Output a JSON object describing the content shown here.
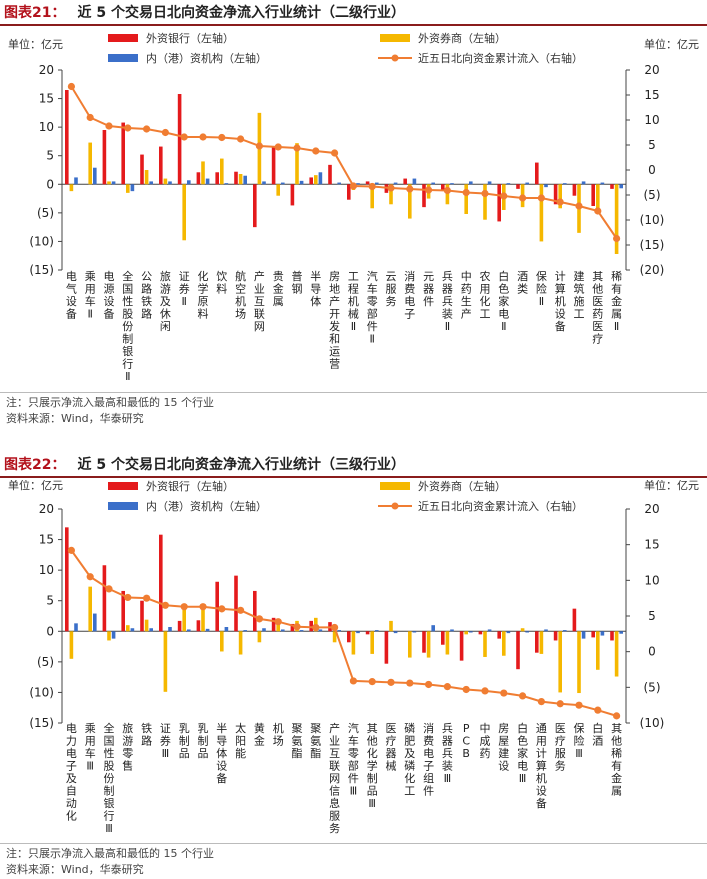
{
  "colors": {
    "foreign_bank": "#e41a1c",
    "foreign_broker": "#f5b800",
    "hk_inst": "#3b6fc9",
    "cumulative": "#f07d32",
    "title_number": "#b3121c"
  },
  "charts": [
    {
      "title_number": "图表21：",
      "title_text": "近 5 个交易日北向资金净流入行业统计（二级行业）",
      "note": "注：只展示净流入最高和最低的 15 个行业",
      "source": "资料来源：Wind，华泰研究"
    },
    {
      "title_number": "图表22：",
      "title_text": "近 5 个交易日北向资金净流入行业统计（三级行业）",
      "note": "注：只展示净流入最高和最低的 15 个行业",
      "source": "资料来源：Wind，华泰研究"
    }
  ],
  "chart_data": [
    {
      "type": "bar",
      "title": "近 5 个交易日北向资金净流入行业统计（二级行业）",
      "left_unit": "单位：亿元",
      "right_unit": "单位：亿元",
      "left_ylim": [
        -15,
        20
      ],
      "left_ticks": [
        "20",
        "15",
        "10",
        "5",
        "0",
        "(5)",
        "(10)",
        "(15)"
      ],
      "right_ylim": [
        -20,
        20
      ],
      "right_ticks": [
        "20",
        "15",
        "10",
        "5",
        "0",
        "(5)",
        "(10)",
        "(15)",
        "(20)"
      ],
      "legend": [
        "外资银行（左轴）",
        "外资券商（左轴）",
        "内（港）资机构（左轴）",
        "近五日北向资金累计流入（右轴）"
      ],
      "categories": [
        "电气设备",
        "乘用车Ⅱ",
        "电源设备",
        "全国性股份制银行Ⅱ",
        "公路铁路",
        "旅游及休闲",
        "证券Ⅱ",
        "化学原料",
        "饮料",
        "航空机场",
        "产业互联网",
        "贵金属",
        "普钢",
        "半导体",
        "房地产开发和运营",
        "工程机械Ⅱ",
        "汽车零部件Ⅱ",
        "云服务",
        "消费电子",
        "元器件",
        "兵器兵装Ⅱ",
        "中药生产",
        "农用化工",
        "白色家电Ⅱ",
        "酒类",
        "保险Ⅱ",
        "计算机设备",
        "建筑施工",
        "其他医药医疗",
        "稀有金属Ⅱ"
      ],
      "series": [
        {
          "name": "外资银行（左轴）",
          "values": [
            16.5,
            0,
            9.5,
            10.8,
            5.2,
            6.6,
            15.8,
            2.1,
            2.1,
            2.2,
            -7.5,
            6.7,
            -3.7,
            1.2,
            3.4,
            -2.7,
            0.5,
            -1.5,
            1.0,
            -4.0,
            -1.0,
            0,
            0,
            -6.5,
            -0.8,
            3.8,
            -3.5,
            -2.0,
            -3.8,
            -0.8
          ]
        },
        {
          "name": "外资券商（左轴）",
          "values": [
            -1.2,
            7.3,
            0.5,
            -1.5,
            2.5,
            1.0,
            -9.8,
            4.0,
            4.5,
            1.8,
            12.5,
            -2.0,
            7.2,
            1.6,
            0,
            -1.0,
            -4.2,
            -3.5,
            -6.0,
            -2.5,
            -3.5,
            -5.2,
            -6.2,
            -4.5,
            -4.0,
            -10.0,
            -4.2,
            -8.5,
            -4.8,
            -12.2
          ]
        },
        {
          "name": "内（港）资机构（左轴）",
          "values": [
            1.2,
            2.9,
            0.5,
            -1.2,
            0.5,
            0.5,
            0.7,
            1.0,
            0.2,
            1.5,
            0.5,
            0.3,
            0.6,
            2.1,
            0.3,
            0.2,
            0.3,
            0.3,
            1.0,
            0.3,
            0.2,
            0.5,
            0.5,
            0.2,
            0.3,
            -0.5,
            0.2,
            0.5,
            0.3,
            -0.7
          ]
        },
        {
          "name": "近五日北向资金累计流入（右轴）",
          "values": [
            16.7,
            10.5,
            8.8,
            8.4,
            8.2,
            7.5,
            6.6,
            6.6,
            6.5,
            6.2,
            4.8,
            4.6,
            4.4,
            3.8,
            3.4,
            -3.2,
            -3.3,
            -3.6,
            -3.8,
            -4.0,
            -4.1,
            -4.5,
            -4.7,
            -5.2,
            -5.6,
            -5.6,
            -6.4,
            -7.2,
            -8.2,
            -13.7
          ]
        }
      ]
    },
    {
      "type": "bar",
      "title": "近 5 个交易日北向资金净流入行业统计（三级行业）",
      "left_unit": "单位：亿元",
      "right_unit": "单位：亿元",
      "left_ylim": [
        -15,
        20
      ],
      "left_ticks": [
        "20",
        "15",
        "10",
        "5",
        "0",
        "(5)",
        "(10)",
        "(15)"
      ],
      "right_ylim": [
        -10,
        20
      ],
      "right_ticks": [
        "20",
        "15",
        "10",
        "5",
        "0",
        "(5)",
        "(10)"
      ],
      "legend": [
        "外资银行（左轴）",
        "外资券商（左轴）",
        "内（港）资机构（左轴）",
        "近五日北向资金累计流入（右轴）"
      ],
      "categories": [
        "电力电子及自动化",
        "乘用车Ⅲ",
        "全国性股份制银行Ⅲ",
        "旅游零售",
        "铁路",
        "证券Ⅲ",
        "乳制品",
        "乳制品",
        "半导体设备",
        "太阳能",
        "黄金",
        "机场",
        "聚氨酯",
        "聚氨酯",
        "产业互联网信息服务",
        "汽车零部件Ⅲ",
        "其他化学制品Ⅲ",
        "医疗器械",
        "磷肥及磷化工",
        "消费电子组件",
        "兵器兵装Ⅲ",
        "PCB",
        "中成药",
        "房屋建设",
        "白色家电Ⅲ",
        "通用计算机设备",
        "医疗服务",
        "保险Ⅲ",
        "白酒",
        "其他稀有金属"
      ],
      "series": [
        {
          "name": "外资银行（左轴）",
          "values": [
            17.0,
            0,
            10.8,
            6.6,
            5.0,
            15.8,
            1.7,
            1.8,
            8.1,
            9.1,
            6.6,
            2.2,
            1.2,
            1.7,
            1.5,
            -1.8,
            -0.5,
            -5.3,
            0,
            -3.5,
            -2.2,
            -4.8,
            -0.5,
            -1.2,
            -6.2,
            -3.5,
            -1.5,
            3.7,
            -1.0,
            -1.5
          ]
        },
        {
          "name": "外资券商（左轴）",
          "values": [
            -4.5,
            7.3,
            -1.5,
            1.0,
            1.9,
            -9.9,
            4.3,
            4.3,
            -3.3,
            -3.8,
            -1.8,
            1.5,
            1.7,
            2.2,
            -1.8,
            -3.8,
            -3.7,
            1.7,
            -4.3,
            -4.3,
            -3.8,
            -0.5,
            -4.2,
            -4.0,
            0.5,
            -3.7,
            -10.0,
            -10.1,
            -6.3,
            -7.4
          ]
        },
        {
          "name": "内（港）资机构（左轴）",
          "values": [
            1.3,
            2.9,
            -1.2,
            0.5,
            0.5,
            0.7,
            0.3,
            0.4,
            0.7,
            0.2,
            0.5,
            0.3,
            0.2,
            0.3,
            0.2,
            -0.3,
            0.2,
            -0.3,
            -0.2,
            1.0,
            0.3,
            -0.2,
            0.3,
            -0.3,
            -0.2,
            0.3,
            0.2,
            -1.2,
            -0.7,
            -0.4
          ]
        },
        {
          "name": "近五日北向资金累计流入（右轴）",
          "values": [
            14.2,
            10.5,
            8.8,
            7.6,
            7.5,
            6.5,
            6.3,
            6.3,
            6.0,
            5.8,
            4.6,
            4.2,
            3.5,
            3.4,
            3.4,
            -4.1,
            -4.2,
            -4.3,
            -4.4,
            -4.6,
            -4.9,
            -5.3,
            -5.5,
            -5.8,
            -6.2,
            -7.0,
            -7.3,
            -7.5,
            -8.2,
            -9.0
          ]
        }
      ]
    }
  ]
}
